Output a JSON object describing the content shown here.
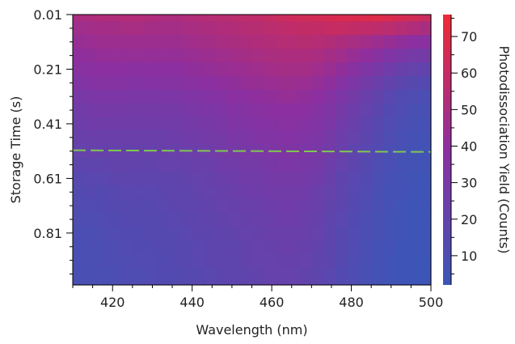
{
  "chart_data": {
    "type": "heatmap",
    "title": "",
    "xlabel": "Wavelength (nm)",
    "ylabel": "Storage Time (s)",
    "colorbar_label": "Photodissociation Yield (Counts)",
    "xlim": [
      410,
      500
    ],
    "ylim": [
      1.0,
      0.01
    ],
    "x_ticks": [
      420,
      440,
      460,
      480,
      500
    ],
    "y_ticks": [
      0.01,
      0.21,
      0.41,
      0.61,
      0.81
    ],
    "y_tick_labels": [
      "0.01",
      "0.21",
      "0.41",
      "0.61",
      "0.81"
    ],
    "colorbar_ticks": [
      10,
      20,
      30,
      40,
      50,
      60,
      70
    ],
    "colorbar_range": [
      2,
      76
    ],
    "colormap": {
      "low": "#3b56b8",
      "mid": "#8c2fa0",
      "high": "#f02a35"
    },
    "reference_line": {
      "storage_time": 0.51,
      "color": "#7ec850",
      "style": "dashed"
    },
    "x": [
      413,
      416,
      419,
      422,
      425,
      428,
      431,
      434,
      437,
      440,
      443,
      446,
      449,
      452,
      455,
      458,
      461,
      464,
      467,
      470,
      473,
      476,
      479,
      482,
      485,
      488,
      491,
      494,
      497,
      500
    ],
    "y": [
      0.01,
      0.06,
      0.11,
      0.16,
      0.21,
      0.26,
      0.31,
      0.36,
      0.41,
      0.46,
      0.51,
      0.56,
      0.61,
      0.66,
      0.71,
      0.76,
      0.81,
      0.86,
      0.91,
      0.96
    ],
    "z": [
      [
        50,
        51,
        52,
        52,
        53,
        53,
        52,
        51,
        51,
        52,
        53,
        54,
        55,
        56,
        57,
        58,
        60,
        62,
        63,
        64,
        65,
        66,
        67,
        68,
        68,
        69,
        68,
        66,
        64,
        62
      ],
      [
        46,
        47,
        48,
        48,
        49,
        49,
        48,
        48,
        48,
        49,
        50,
        51,
        52,
        53,
        54,
        55,
        56,
        57,
        58,
        59,
        59,
        60,
        60,
        59,
        58,
        57,
        56,
        54,
        52,
        50
      ],
      [
        43,
        44,
        45,
        45,
        45,
        45,
        45,
        45,
        45,
        46,
        47,
        48,
        49,
        50,
        51,
        52,
        53,
        54,
        54,
        55,
        54,
        53,
        51,
        49,
        47,
        45,
        43,
        41,
        39,
        38
      ],
      [
        40,
        41,
        42,
        42,
        42,
        42,
        42,
        42,
        42,
        43,
        44,
        45,
        46,
        47,
        48,
        49,
        50,
        51,
        51,
        51,
        50,
        48,
        46,
        43,
        40,
        37,
        34,
        31,
        29,
        28
      ],
      [
        37,
        38,
        39,
        39,
        38,
        38,
        38,
        39,
        39,
        40,
        41,
        42,
        43,
        44,
        45,
        46,
        47,
        48,
        48,
        48,
        46,
        44,
        41,
        37,
        33,
        30,
        26,
        23,
        21,
        20
      ],
      [
        34,
        35,
        36,
        36,
        35,
        35,
        35,
        36,
        36,
        37,
        38,
        39,
        40,
        41,
        42,
        43,
        44,
        45,
        45,
        44,
        42,
        40,
        36,
        32,
        28,
        24,
        20,
        17,
        15,
        14
      ],
      [
        30,
        31,
        32,
        32,
        31,
        31,
        31,
        32,
        32,
        33,
        34,
        35,
        36,
        38,
        39,
        40,
        41,
        42,
        42,
        41,
        39,
        36,
        32,
        28,
        24,
        20,
        16,
        13,
        11,
        10
      ],
      [
        27,
        28,
        29,
        29,
        28,
        28,
        28,
        29,
        29,
        30,
        31,
        32,
        33,
        35,
        36,
        37,
        38,
        39,
        39,
        38,
        36,
        33,
        29,
        25,
        21,
        17,
        13,
        11,
        9,
        8
      ],
      [
        25,
        26,
        26,
        26,
        26,
        26,
        26,
        26,
        27,
        28,
        29,
        30,
        31,
        33,
        34,
        35,
        36,
        37,
        37,
        36,
        34,
        31,
        27,
        23,
        19,
        15,
        12,
        10,
        8,
        7
      ],
      [
        23,
        24,
        24,
        24,
        24,
        24,
        24,
        24,
        25,
        26,
        27,
        28,
        29,
        31,
        32,
        33,
        34,
        35,
        35,
        34,
        32,
        29,
        25,
        21,
        17,
        14,
        11,
        9,
        7,
        6
      ],
      [
        21,
        22,
        22,
        22,
        22,
        22,
        22,
        23,
        23,
        24,
        25,
        26,
        28,
        29,
        30,
        31,
        32,
        33,
        33,
        32,
        30,
        27,
        23,
        19,
        16,
        13,
        10,
        8,
        6,
        5
      ],
      [
        18,
        19,
        19,
        20,
        20,
        20,
        20,
        21,
        21,
        22,
        23,
        24,
        26,
        27,
        28,
        29,
        30,
        31,
        31,
        30,
        28,
        25,
        21,
        18,
        14,
        11,
        9,
        7,
        6,
        5
      ],
      [
        15,
        16,
        16,
        17,
        18,
        18,
        18,
        19,
        19,
        20,
        21,
        22,
        24,
        25,
        26,
        27,
        28,
        29,
        29,
        28,
        26,
        23,
        19,
        16,
        13,
        10,
        8,
        6,
        5,
        4
      ],
      [
        13,
        14,
        14,
        15,
        16,
        16,
        16,
        17,
        18,
        19,
        20,
        21,
        22,
        24,
        25,
        26,
        27,
        27,
        27,
        26,
        24,
        21,
        18,
        15,
        12,
        9,
        7,
        6,
        5,
        4
      ],
      [
        12,
        12,
        13,
        14,
        15,
        15,
        15,
        16,
        17,
        18,
        19,
        20,
        21,
        22,
        23,
        24,
        25,
        26,
        26,
        25,
        23,
        20,
        17,
        14,
        11,
        9,
        7,
        5,
        4,
        4
      ],
      [
        11,
        11,
        12,
        13,
        14,
        14,
        14,
        15,
        16,
        17,
        18,
        19,
        20,
        21,
        22,
        23,
        24,
        25,
        25,
        24,
        22,
        19,
        16,
        13,
        10,
        8,
        6,
        5,
        4,
        3
      ],
      [
        10,
        10,
        11,
        12,
        13,
        13,
        14,
        14,
        15,
        16,
        17,
        18,
        19,
        20,
        21,
        22,
        23,
        24,
        24,
        23,
        21,
        18,
        15,
        12,
        10,
        8,
        6,
        5,
        4,
        3
      ],
      [
        9,
        10,
        10,
        11,
        12,
        13,
        13,
        14,
        14,
        15,
        16,
        17,
        18,
        19,
        20,
        21,
        22,
        23,
        23,
        22,
        20,
        17,
        14,
        12,
        9,
        7,
        6,
        4,
        4,
        3
      ],
      [
        9,
        9,
        10,
        11,
        11,
        12,
        12,
        13,
        14,
        15,
        16,
        17,
        18,
        19,
        20,
        21,
        21,
        22,
        22,
        21,
        19,
        17,
        14,
        11,
        9,
        7,
        5,
        4,
        3,
        3
      ],
      [
        8,
        9,
        9,
        10,
        11,
        11,
        12,
        13,
        13,
        14,
        15,
        16,
        17,
        18,
        19,
        20,
        21,
        21,
        21,
        20,
        18,
        16,
        13,
        11,
        8,
        6,
        5,
        4,
        3,
        3
      ]
    ]
  }
}
